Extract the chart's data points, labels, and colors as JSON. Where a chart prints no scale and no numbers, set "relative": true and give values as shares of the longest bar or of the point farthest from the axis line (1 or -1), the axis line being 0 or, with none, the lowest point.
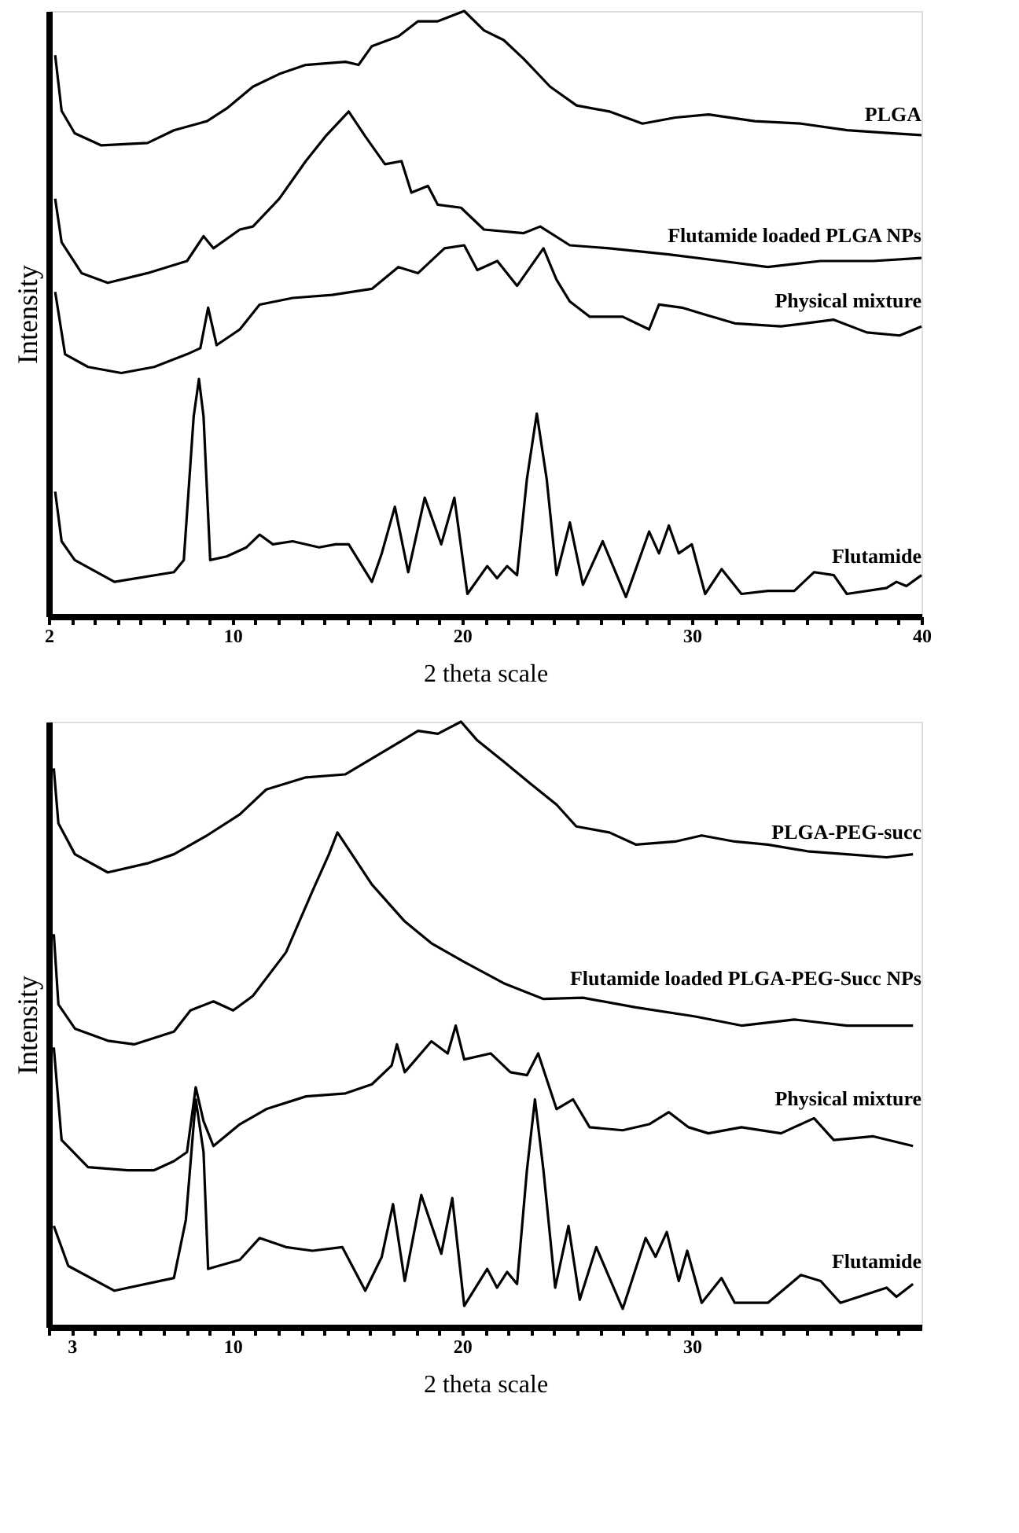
{
  "chart_data": [
    {
      "type": "line",
      "relative": true,
      "xlabel": "2 theta scale",
      "ylabel": "Intensity",
      "xlim": [
        2,
        40
      ],
      "xticks": [
        2,
        {
          "value": 3,
          "label": null
        },
        {
          "value": 4,
          "label": null
        },
        {
          "value": 5,
          "label": null
        },
        {
          "value": 6,
          "label": null
        },
        {
          "value": 7,
          "label": null
        },
        {
          "value": 8,
          "label": null
        },
        {
          "value": 9,
          "label": null
        },
        10,
        {
          "value": 11,
          "label": null
        },
        {
          "value": 12,
          "label": null
        },
        {
          "value": 13,
          "label": null
        },
        {
          "value": 14,
          "label": null
        },
        {
          "value": 15,
          "label": null
        },
        {
          "value": 16,
          "label": null
        },
        {
          "value": 17,
          "label": null
        },
        {
          "value": 18,
          "label": null
        },
        {
          "value": 19,
          "label": null
        },
        20,
        {
          "value": 21,
          "label": null
        },
        {
          "value": 22,
          "label": null
        },
        {
          "value": 23,
          "label": null
        },
        {
          "value": 24,
          "label": null
        },
        {
          "value": 25,
          "label": null
        },
        {
          "value": 26,
          "label": null
        },
        {
          "value": 27,
          "label": null
        },
        {
          "value": 28,
          "label": null
        },
        {
          "value": 29,
          "label": null
        },
        30,
        {
          "value": 31,
          "label": null
        },
        {
          "value": 32,
          "label": null
        },
        {
          "value": 33,
          "label": null
        },
        {
          "value": 34,
          "label": null
        },
        {
          "value": 35,
          "label": null
        },
        {
          "value": 36,
          "label": null
        },
        {
          "value": 37,
          "label": null
        },
        {
          "value": 38,
          "label": null
        },
        {
          "value": 39,
          "label": null
        },
        40
      ],
      "tick_labels": "x",
      "grid": false,
      "legend": false,
      "marker": "none",
      "line_style": "solid",
      "series": [
        {
          "name": "PLGA",
          "color": "#000000",
          "x": [
            2.28,
            2.56,
            3.13,
            4.29,
            6.3,
            7.45,
            8.89,
            9.75,
            10.89,
            12.04,
            13.19,
            14.92,
            15.49,
            16.07,
            17.22,
            18.08,
            18.94,
            20.09,
            20.95,
            21.81,
            22.68,
            23.83,
            24.98,
            26.41,
            27.85,
            29.29,
            30.73,
            32.74,
            34.75,
            36.76,
            38.77,
            40
          ],
          "values": [
            0.927,
            0.835,
            0.798,
            0.778,
            0.782,
            0.803,
            0.818,
            0.839,
            0.875,
            0.896,
            0.911,
            0.916,
            0.911,
            0.942,
            0.958,
            0.983,
            0.983,
            1.0,
            0.968,
            0.952,
            0.921,
            0.875,
            0.844,
            0.834,
            0.814,
            0.824,
            0.829,
            0.818,
            0.814,
            0.803,
            0.798,
            0.795
          ]
        },
        {
          "name": "Flutamide loaded PLGA NPs",
          "color": "#000000",
          "x": [
            2.28,
            2.56,
            3.43,
            4.57,
            6.3,
            8.02,
            8.74,
            9.17,
            10.32,
            10.89,
            12.04,
            13.19,
            14.05,
            15.06,
            15.78,
            16.64,
            17.36,
            17.79,
            18.51,
            18.94,
            19.95,
            20.95,
            22.68,
            23.4,
            24.69,
            26.41,
            28.99,
            31.29,
            33.3,
            35.6,
            37.89,
            40
          ],
          "values": [
            0.69,
            0.618,
            0.567,
            0.551,
            0.567,
            0.587,
            0.628,
            0.608,
            0.639,
            0.644,
            0.69,
            0.752,
            0.793,
            0.834,
            0.793,
            0.747,
            0.752,
            0.7,
            0.711,
            0.68,
            0.675,
            0.639,
            0.633,
            0.644,
            0.613,
            0.608,
            0.598,
            0.587,
            0.577,
            0.587,
            0.587,
            0.592
          ]
        },
        {
          "name": "Physical mixture",
          "color": "#000000",
          "x": [
            2.28,
            2.71,
            3.71,
            5.16,
            6.59,
            8.02,
            8.6,
            8.94,
            9.31,
            10.32,
            11.18,
            12.62,
            14.34,
            16.07,
            17.22,
            18.08,
            19.23,
            20.09,
            20.66,
            21.53,
            22.39,
            23.54,
            24.11,
            24.69,
            25.55,
            26.99,
            28.14,
            28.57,
            29.57,
            30.44,
            31.87,
            33.88,
            36.18,
            37.62,
            39.05,
            40
          ],
          "values": [
            0.536,
            0.433,
            0.412,
            0.402,
            0.412,
            0.433,
            0.443,
            0.51,
            0.448,
            0.474,
            0.515,
            0.526,
            0.531,
            0.541,
            0.577,
            0.567,
            0.608,
            0.613,
            0.572,
            0.587,
            0.546,
            0.608,
            0.556,
            0.52,
            0.495,
            0.495,
            0.474,
            0.515,
            0.51,
            0.5,
            0.484,
            0.479,
            0.49,
            0.469,
            0.464,
            0.479
          ]
        },
        {
          "name": "Flutamide",
          "color": "#000000",
          "x": [
            2.28,
            2.56,
            3.13,
            4.86,
            7.45,
            7.88,
            8.31,
            8.54,
            8.74,
            9.03,
            9.75,
            10.61,
            11.18,
            11.76,
            12.62,
            13.77,
            14.49,
            15.06,
            16.07,
            16.5,
            17.07,
            17.65,
            18.37,
            19.09,
            19.66,
            20.23,
            21.09,
            21.52,
            21.96,
            22.39,
            22.82,
            23.25,
            23.68,
            24.11,
            24.69,
            25.26,
            26.12,
            27.13,
            28.14,
            28.57,
            29.0,
            29.43,
            30.0,
            30.58,
            31.3,
            32.16,
            33.31,
            34.46,
            35.32,
            36.18,
            36.75,
            38.48,
            38.91,
            39.34,
            40
          ],
          "values": [
            0.206,
            0.124,
            0.093,
            0.057,
            0.073,
            0.093,
            0.33,
            0.392,
            0.33,
            0.093,
            0.099,
            0.114,
            0.135,
            0.119,
            0.124,
            0.114,
            0.119,
            0.119,
            0.057,
            0.104,
            0.181,
            0.073,
            0.196,
            0.119,
            0.196,
            0.037,
            0.083,
            0.063,
            0.083,
            0.068,
            0.227,
            0.335,
            0.227,
            0.068,
            0.155,
            0.052,
            0.124,
            0.032,
            0.14,
            0.104,
            0.15,
            0.104,
            0.119,
            0.037,
            0.078,
            0.037,
            0.042,
            0.042,
            0.073,
            0.068,
            0.037,
            0.047,
            0.057,
            0.05,
            0.068
          ]
        }
      ]
    },
    {
      "type": "line",
      "relative": true,
      "xlabel": "2 theta scale",
      "ylabel": "Intensity",
      "xlim": [
        2,
        40
      ],
      "xticks": [
        {
          "value": 2,
          "label": null
        },
        3,
        {
          "value": 4,
          "label": null
        },
        {
          "value": 5,
          "label": null
        },
        {
          "value": 6,
          "label": null
        },
        {
          "value": 7,
          "label": null
        },
        {
          "value": 8,
          "label": null
        },
        {
          "value": 9,
          "label": null
        },
        10,
        {
          "value": 11,
          "label": null
        },
        {
          "value": 12,
          "label": null
        },
        {
          "value": 13,
          "label": null
        },
        {
          "value": 14,
          "label": null
        },
        {
          "value": 15,
          "label": null
        },
        {
          "value": 16,
          "label": null
        },
        {
          "value": 17,
          "label": null
        },
        {
          "value": 18,
          "label": null
        },
        {
          "value": 19,
          "label": null
        },
        20,
        {
          "value": 21,
          "label": null
        },
        {
          "value": 22,
          "label": null
        },
        {
          "value": 23,
          "label": null
        },
        {
          "value": 24,
          "label": null
        },
        {
          "value": 25,
          "label": null
        },
        {
          "value": 26,
          "label": null
        },
        {
          "value": 27,
          "label": null
        },
        {
          "value": 28,
          "label": null
        },
        {
          "value": 29,
          "label": null
        },
        30,
        {
          "value": 31,
          "label": null
        },
        {
          "value": 32,
          "label": null
        },
        {
          "value": 33,
          "label": null
        },
        {
          "value": 34,
          "label": null
        },
        {
          "value": 35,
          "label": null
        },
        {
          "value": 36,
          "label": null
        },
        {
          "value": 37,
          "label": null
        },
        {
          "value": 38,
          "label": null
        },
        {
          "value": 39,
          "label": null
        }
      ],
      "tick_labels": "x",
      "grid": false,
      "legend": false,
      "marker": "none",
      "line_style": "solid",
      "series": [
        {
          "name": "PLGA-PEG-succ",
          "color": "#000000",
          "x": [
            2.22,
            2.42,
            3.14,
            4.57,
            6.3,
            7.45,
            8.89,
            10.32,
            11.47,
            13.2,
            14.92,
            16.07,
            17.22,
            18.08,
            18.94,
            19.95,
            20.66,
            21.81,
            22.96,
            24.11,
            24.97,
            26.41,
            27.56,
            29.28,
            30.43,
            31.87,
            33.31,
            35.03,
            36.75,
            38.48,
            39.63
          ],
          "values": [
            0.923,
            0.832,
            0.781,
            0.751,
            0.766,
            0.781,
            0.812,
            0.847,
            0.888,
            0.908,
            0.913,
            0.939,
            0.965,
            0.985,
            0.98,
            1.0,
            0.969,
            0.934,
            0.898,
            0.863,
            0.827,
            0.817,
            0.797,
            0.802,
            0.812,
            0.802,
            0.797,
            0.786,
            0.781,
            0.776,
            0.781
          ]
        },
        {
          "name": "Flutamide loaded PLGA-PEG-Succ NPs",
          "color": "#000000",
          "x": [
            2.22,
            2.42,
            3.14,
            4.57,
            5.72,
            7.45,
            8.17,
            9.17,
            10.03,
            10.89,
            12.33,
            13.48,
            14.2,
            14.57,
            15.2,
            16.07,
            17.5,
            18.66,
            20.09,
            21.81,
            23.54,
            25.26,
            27.56,
            30.15,
            32.16,
            34.46,
            36.75,
            39.63
          ],
          "values": [
            0.649,
            0.533,
            0.493,
            0.473,
            0.467,
            0.488,
            0.523,
            0.538,
            0.523,
            0.547,
            0.619,
            0.72,
            0.781,
            0.817,
            0.781,
            0.731,
            0.67,
            0.634,
            0.603,
            0.568,
            0.542,
            0.544,
            0.528,
            0.513,
            0.498,
            0.508,
            0.498,
            0.498
          ]
        },
        {
          "name": "Physical mixture",
          "color": "#000000",
          "x": [
            2.22,
            2.56,
            3.71,
            5.44,
            6.59,
            7.45,
            8.02,
            8.4,
            8.74,
            9.17,
            10.32,
            11.47,
            13.2,
            14.92,
            16.07,
            16.93,
            17.16,
            17.5,
            18.66,
            19.37,
            19.72,
            20.09,
            21.24,
            22.1,
            22.82,
            23.31,
            24.11,
            24.83,
            25.55,
            26.99,
            28.14,
            29.0,
            29.86,
            30.72,
            32.16,
            33.88,
            35.32,
            36.18,
            37.9,
            39.63
          ],
          "values": [
            0.462,
            0.309,
            0.264,
            0.259,
            0.259,
            0.274,
            0.289,
            0.396,
            0.34,
            0.299,
            0.335,
            0.36,
            0.381,
            0.386,
            0.401,
            0.432,
            0.467,
            0.421,
            0.472,
            0.452,
            0.498,
            0.442,
            0.452,
            0.421,
            0.416,
            0.452,
            0.36,
            0.376,
            0.33,
            0.325,
            0.335,
            0.355,
            0.33,
            0.32,
            0.33,
            0.32,
            0.345,
            0.309,
            0.315,
            0.299
          ]
        },
        {
          "name": "Flutamide",
          "color": "#000000",
          "x": [
            2.22,
            2.85,
            4.86,
            7.45,
            7.97,
            8.4,
            8.74,
            8.94,
            10.32,
            11.18,
            12.33,
            13.48,
            14.78,
            15.78,
            16.5,
            16.99,
            17.5,
            18.22,
            19.09,
            19.57,
            20.09,
            21.09,
            21.52,
            21.96,
            22.39,
            22.82,
            23.17,
            23.54,
            24.05,
            24.63,
            25.12,
            25.84,
            26.99,
            27.99,
            28.42,
            28.91,
            29.43,
            29.8,
            30.43,
            31.29,
            31.87,
            33.31,
            34.75,
            35.61,
            36.47,
            38.48,
            38.91,
            39.63
          ],
          "values": [
            0.167,
            0.101,
            0.06,
            0.081,
            0.177,
            0.376,
            0.289,
            0.096,
            0.111,
            0.147,
            0.132,
            0.126,
            0.132,
            0.06,
            0.116,
            0.203,
            0.076,
            0.218,
            0.121,
            0.213,
            0.035,
            0.096,
            0.065,
            0.091,
            0.071,
            0.259,
            0.376,
            0.259,
            0.065,
            0.167,
            0.045,
            0.132,
            0.03,
            0.147,
            0.116,
            0.157,
            0.076,
            0.126,
            0.04,
            0.081,
            0.04,
            0.04,
            0.086,
            0.076,
            0.04,
            0.065,
            0.05,
            0.071
          ]
        }
      ]
    }
  ]
}
